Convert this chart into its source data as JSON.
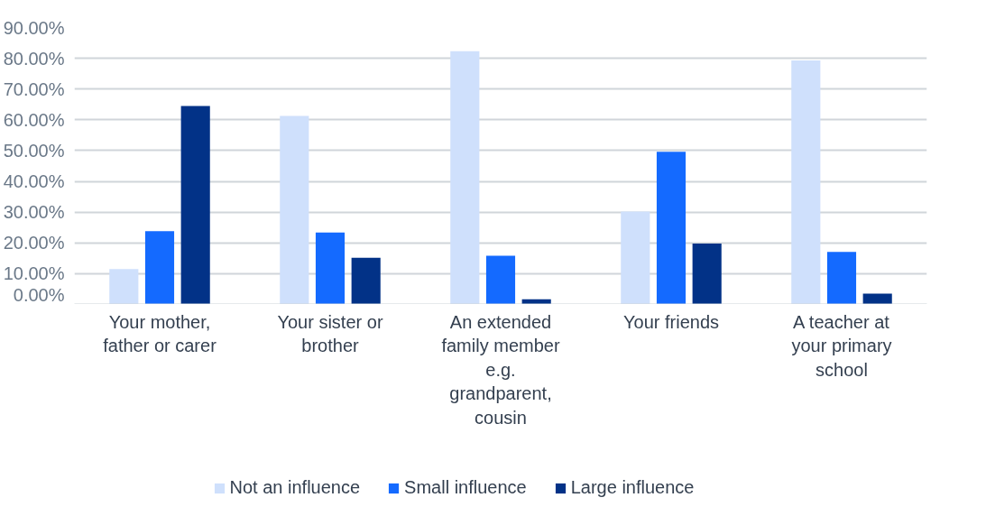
{
  "chart_data": {
    "type": "bar",
    "categories": [
      "Your mother, father or carer",
      "Your sister or brother",
      "An extended family member e.g. grandparent, cousin",
      "Your friends",
      "A teacher at your primary school"
    ],
    "series": [
      {
        "name": "Not an influence",
        "color": "#cfe0fc",
        "values": [
          11.5,
          61.3,
          82.3,
          30.2,
          79.3
        ]
      },
      {
        "name": "Small influence",
        "color": "#146aff",
        "values": [
          23.8,
          23.4,
          15.8,
          49.6,
          17.1
        ]
      },
      {
        "name": "Large influence",
        "color": "#023287",
        "values": [
          64.5,
          15.2,
          1.7,
          19.8,
          3.5
        ]
      }
    ],
    "ylim": [
      0,
      90
    ],
    "yticks": [
      {
        "value": 0,
        "label": "0.00%"
      },
      {
        "value": 10,
        "label": "10.00%"
      },
      {
        "value": 20,
        "label": "20.00%"
      },
      {
        "value": 30,
        "label": "30.00%"
      },
      {
        "value": 40,
        "label": "40.00%"
      },
      {
        "value": 50,
        "label": "50.00%"
      },
      {
        "value": 60,
        "label": "60.00%"
      },
      {
        "value": 70,
        "label": "70.00%"
      },
      {
        "value": 80,
        "label": "80.00%"
      },
      {
        "value": 90,
        "label": "90.00%"
      }
    ],
    "grid": "y",
    "legend": "bottom"
  }
}
